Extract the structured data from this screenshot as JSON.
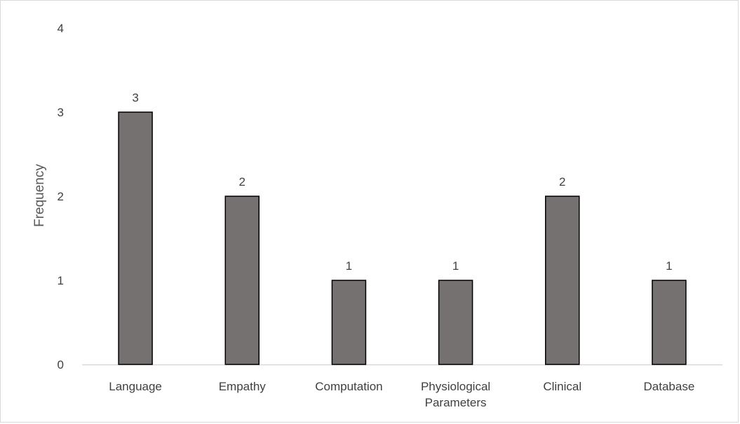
{
  "chart_data": {
    "type": "bar",
    "title": "",
    "xlabel": "",
    "ylabel": "Frequency",
    "categories": [
      [
        "Language"
      ],
      [
        "Empathy"
      ],
      [
        "Computation"
      ],
      [
        "Physiological",
        "Parameters"
      ],
      [
        "Clinical"
      ],
      [
        "Database"
      ]
    ],
    "values": [
      3,
      2,
      1,
      1,
      2,
      1
    ],
    "ylim": [
      0,
      4
    ],
    "yticks": [
      0,
      1,
      2,
      3,
      4
    ],
    "grid": false,
    "legend": "none",
    "data_labels": true,
    "colors": {
      "bar_fill": "#767171",
      "bar_stroke": "#000000",
      "axis": "#d9d9d9",
      "text": "#404040"
    }
  }
}
